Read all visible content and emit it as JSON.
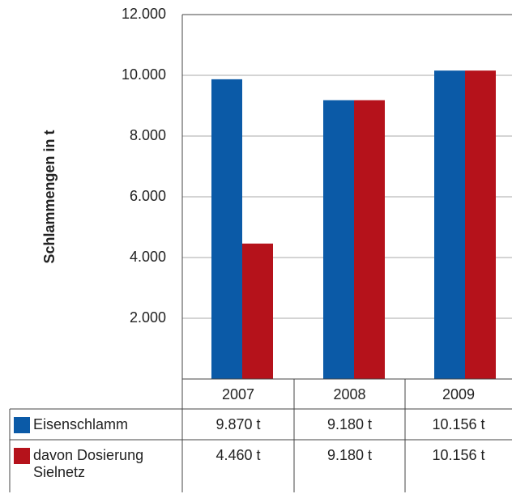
{
  "chart_data": {
    "type": "bar",
    "y_label": "Schlammengen in t",
    "categories": [
      "2007",
      "2008",
      "2009"
    ],
    "series": [
      {
        "name": "Eisenschlamm",
        "color": "#0b5aa7",
        "values": [
          9870,
          9180,
          10156
        ],
        "value_labels": [
          "9.870 t",
          "9.180 t",
          "10.156 t"
        ]
      },
      {
        "name": "davon Dosierung Sielnetz",
        "color": "#b5121b",
        "values": [
          4460,
          9180,
          10156
        ],
        "value_labels": [
          "4.460 t",
          "9.180 t",
          "10.156 t"
        ]
      }
    ],
    "ylim": [
      0,
      12000
    ],
    "yticks": [
      {
        "value": 2000,
        "label": "2.000"
      },
      {
        "value": 4000,
        "label": "4.000"
      },
      {
        "value": 6000,
        "label": "6.000"
      },
      {
        "value": 8000,
        "label": "8.000"
      },
      {
        "value": 10000,
        "label": "10.000"
      },
      {
        "value": 12000,
        "label": "12.000"
      }
    ],
    "grid": true
  }
}
